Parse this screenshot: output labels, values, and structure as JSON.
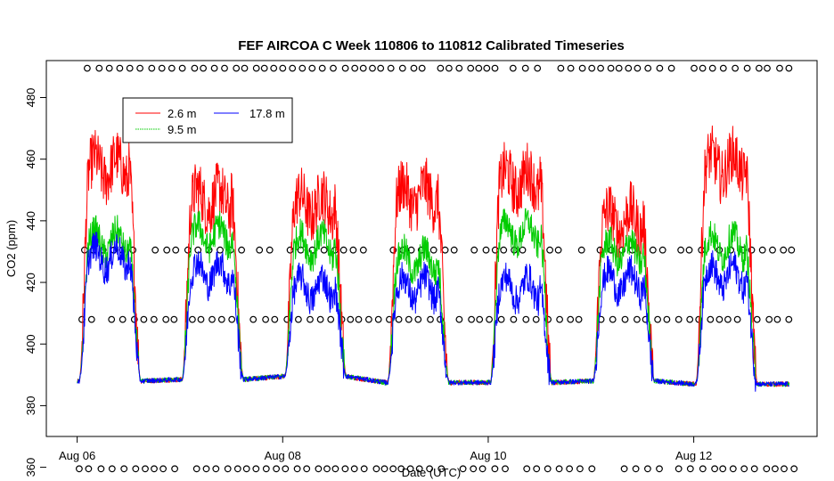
{
  "chart_data": {
    "type": "line",
    "title": "FEF AIRCOA C  Week 110806 to 110812  Calibrated Timeseries",
    "xlabel": "Date (UTC)",
    "ylabel": "CO2 (ppm)",
    "x_unit": "days since Aug 06 00:00 UTC",
    "xlim": [
      -0.3,
      7.2
    ],
    "ylim": [
      370,
      492
    ],
    "x_ticks": [
      {
        "value": 0,
        "label": "Aug 06"
      },
      {
        "value": 2,
        "label": "Aug 08"
      },
      {
        "value": 4,
        "label": "Aug 10"
      },
      {
        "value": 6,
        "label": "Aug 12"
      }
    ],
    "y_ticks": [
      360,
      380,
      400,
      420,
      440,
      460,
      480
    ],
    "grid": false,
    "legend": {
      "position": "top-left",
      "entries": [
        "2.6 m",
        "9.5 m",
        "17.8 m"
      ]
    },
    "series": [
      {
        "name": "2.6 m",
        "color": "#ff0000"
      },
      {
        "name": "9.5 m",
        "color": "#00cc00"
      },
      {
        "name": "17.8 m",
        "color": "#0000ff"
      }
    ],
    "daily_profile": {
      "description": "approximate per-day values: night baseline, daytime mean level for each height",
      "days": [
        0,
        1,
        2,
        3,
        4,
        5,
        6
      ],
      "baseline": [
        388,
        388.5,
        389.5,
        387.5,
        387.5,
        388,
        387
      ],
      "peak_2.6m": [
        457,
        447,
        445,
        448,
        453,
        440,
        458
      ],
      "peak_9.5m": [
        433,
        435,
        432,
        427,
        436,
        430,
        432
      ],
      "peak_17.8m": [
        428,
        423,
        418,
        418,
        418,
        420,
        422
      ]
    },
    "calibration_markers": {
      "symbol": "open-circle",
      "levels_ppm": [
        359.5,
        408,
        430.5,
        489.5
      ],
      "x_range": [
        0.02,
        7.0
      ]
    }
  }
}
